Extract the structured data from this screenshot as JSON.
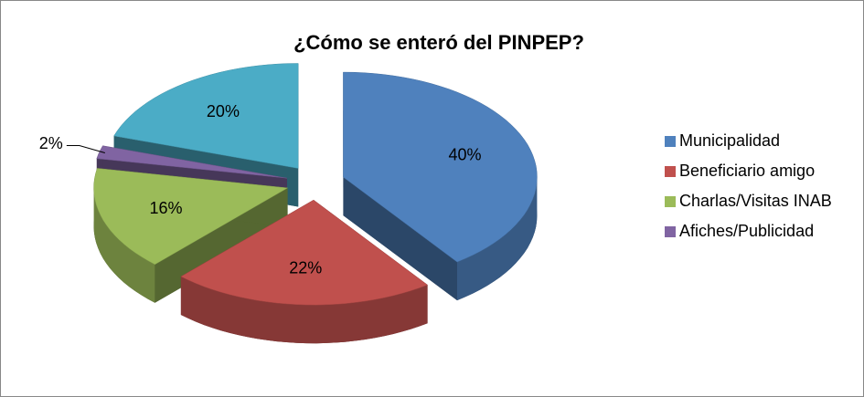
{
  "chart_data": {
    "type": "pie",
    "title": "¿Cómo se enteró del PINPEP?",
    "categories": [
      "Municipalidad",
      "Beneficiario amigo",
      "Charlas/Visitas INAB",
      "Afiches/Publicidad",
      null
    ],
    "values": [
      40,
      22,
      16,
      2,
      20
    ],
    "value_labels": [
      "40%",
      "22%",
      "16%",
      "2%",
      "20%"
    ],
    "colors": [
      "#4f81bd",
      "#c0504d",
      "#9bbb59",
      "#8064a2",
      "#4bacc6"
    ],
    "legend": "right"
  }
}
